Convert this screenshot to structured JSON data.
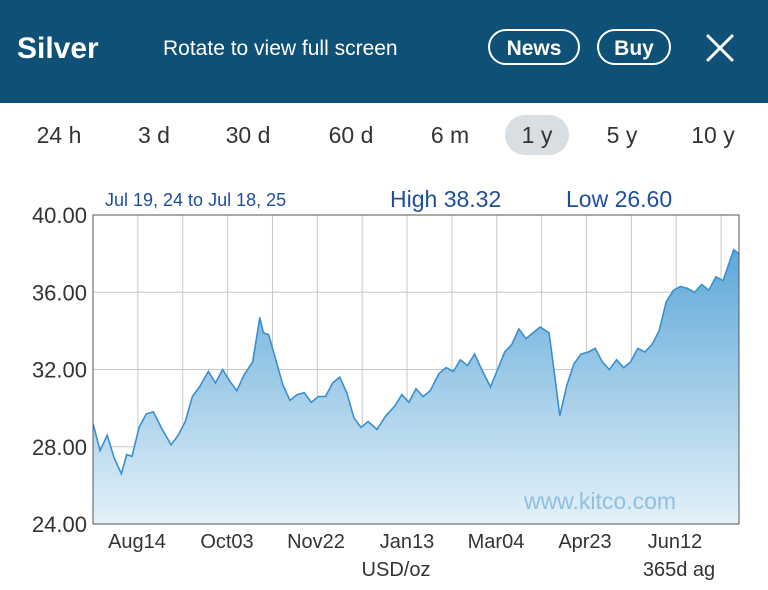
{
  "header": {
    "title": "Silver",
    "hint": "Rotate to view full screen",
    "news_label": "News",
    "buy_label": "Buy",
    "close_icon": "close-icon"
  },
  "ranges": [
    {
      "label": "24 h",
      "active": false
    },
    {
      "label": "3 d",
      "active": false
    },
    {
      "label": "30 d",
      "active": false
    },
    {
      "label": "60 d",
      "active": false
    },
    {
      "label": "6 m",
      "active": false
    },
    {
      "label": "1 y",
      "active": true
    },
    {
      "label": "5 y",
      "active": false
    },
    {
      "label": "10 y",
      "active": false
    }
  ],
  "colors": {
    "header_bg": "#0f5077",
    "line": "#3a8fd0",
    "area_top": "#5ea8d8",
    "area_bottom": "#e4f1f9",
    "info_text": "#1d4f9c",
    "watermark": "#8fbfe0"
  },
  "chart_data": {
    "type": "area",
    "range_text": "Jul 19, 24 to Jul 18, 25",
    "high_text": "High 38.32",
    "low_text": "Low 26.60",
    "watermark": "www.kitco.com",
    "unit_label": "USD/oz",
    "span_label": "365d ag",
    "ylim": [
      24,
      40
    ],
    "yticks": [
      "40.00",
      "36.00",
      "32.00",
      "28.00",
      "24.00"
    ],
    "xticks": [
      "Aug14",
      "Oct03",
      "Nov22",
      "Jan13",
      "Mar04",
      "Apr23",
      "Jun12"
    ],
    "grid": true,
    "x_start": "2024-07-19",
    "x_end": "2025-07-18",
    "series": [
      {
        "x": [
          "2024-07-19",
          "2024-07-23",
          "2024-07-27",
          "2024-07-31",
          "2024-08-04",
          "2024-08-07",
          "2024-08-10",
          "2024-08-14",
          "2024-08-18",
          "2024-08-22",
          "2024-08-27",
          "2024-09-01",
          "2024-09-05",
          "2024-09-09",
          "2024-09-13",
          "2024-09-17",
          "2024-09-22",
          "2024-09-26",
          "2024-09-30",
          "2024-10-04",
          "2024-10-08",
          "2024-10-12",
          "2024-10-17",
          "2024-10-21",
          "2024-10-23",
          "2024-10-26",
          "2024-10-30",
          "2024-11-03",
          "2024-11-07",
          "2024-11-11",
          "2024-11-15",
          "2024-11-19",
          "2024-11-23",
          "2024-11-27",
          "2024-12-01",
          "2024-12-05",
          "2024-12-09",
          "2024-12-13",
          "2024-12-17",
          "2024-12-21",
          "2024-12-26",
          "2024-12-31",
          "2025-01-05",
          "2025-01-09",
          "2025-01-13",
          "2025-01-17",
          "2025-01-21",
          "2025-01-25",
          "2025-01-30",
          "2025-02-03",
          "2025-02-07",
          "2025-02-11",
          "2025-02-15",
          "2025-02-19",
          "2025-02-23",
          "2025-02-28",
          "2025-03-04",
          "2025-03-08",
          "2025-03-12",
          "2025-03-16",
          "2025-03-20",
          "2025-03-24",
          "2025-03-28",
          "2025-04-02",
          "2025-04-05",
          "2025-04-08",
          "2025-04-12",
          "2025-04-16",
          "2025-04-20",
          "2025-04-24",
          "2025-04-28",
          "2025-05-02",
          "2025-05-06",
          "2025-05-10",
          "2025-05-14",
          "2025-05-18",
          "2025-05-22",
          "2025-05-26",
          "2025-05-30",
          "2025-06-03",
          "2025-06-07",
          "2025-06-11",
          "2025-06-15",
          "2025-06-19",
          "2025-06-23",
          "2025-06-27",
          "2025-07-01",
          "2025-07-05",
          "2025-07-09",
          "2025-07-12",
          "2025-07-15",
          "2025-07-18"
        ],
        "values": [
          29.2,
          27.8,
          28.6,
          27.4,
          26.6,
          27.6,
          27.5,
          29.0,
          29.7,
          29.8,
          28.9,
          28.1,
          28.6,
          29.3,
          30.6,
          31.1,
          31.9,
          31.3,
          32.0,
          31.4,
          30.9,
          31.7,
          32.4,
          34.7,
          33.9,
          33.8,
          32.5,
          31.2,
          30.4,
          30.7,
          30.8,
          30.3,
          30.6,
          30.6,
          31.3,
          31.6,
          30.8,
          29.5,
          29.0,
          29.3,
          28.9,
          29.6,
          30.1,
          30.7,
          30.3,
          31.0,
          30.6,
          30.9,
          31.8,
          32.1,
          31.9,
          32.5,
          32.2,
          32.8,
          32.0,
          31.1,
          32.0,
          32.9,
          33.3,
          34.1,
          33.6,
          33.9,
          34.2,
          33.9,
          31.8,
          29.6,
          31.2,
          32.3,
          32.8,
          32.9,
          33.1,
          32.4,
          32.0,
          32.5,
          32.1,
          32.4,
          33.1,
          32.9,
          33.3,
          34.0,
          35.5,
          36.1,
          36.3,
          36.2,
          36.0,
          36.4,
          36.1,
          36.8,
          36.6,
          37.4,
          38.2,
          38.0
        ]
      }
    ]
  }
}
